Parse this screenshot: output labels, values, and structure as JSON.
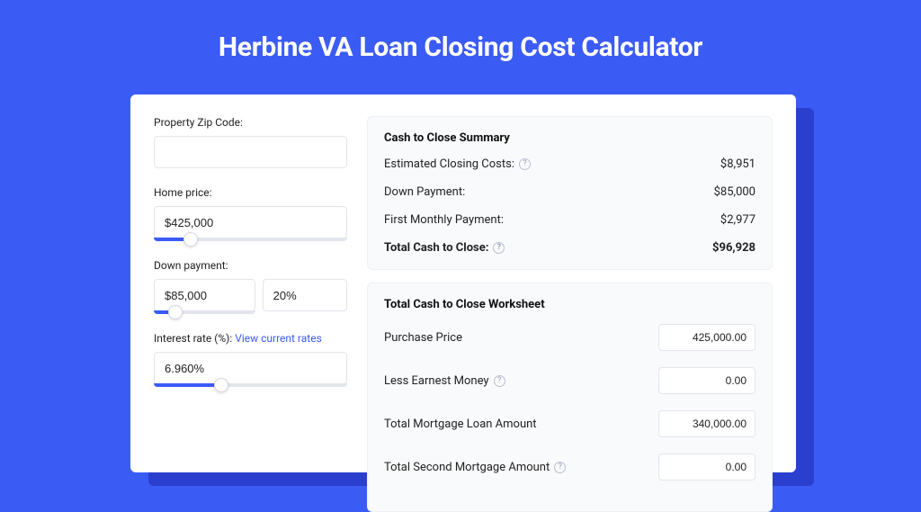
{
  "colors": {
    "page_bg": "#3b5bf5",
    "card_bg": "#ffffff",
    "shadow_bg": "#2b3fcf",
    "panel_bg": "#f9fafc",
    "border": "#e3e5ec",
    "text": "#222222",
    "link": "#3b5bf5",
    "slider_fill": "#3b5bf5",
    "slider_track": "#e3e5ec"
  },
  "page_title": "Herbine VA Loan Closing Cost Calculator",
  "form": {
    "zip": {
      "label": "Property Zip Code:",
      "value": ""
    },
    "home_price": {
      "label": "Home price:",
      "value": "$425,000",
      "slider_pct": 19
    },
    "down_payment": {
      "label": "Down payment:",
      "value": "$85,000",
      "pct": "20%",
      "slider_pct": 21
    },
    "interest_rate": {
      "label": "Interest rate (%): ",
      "link_text": "View current rates",
      "value": "6.960%",
      "slider_pct": 35
    }
  },
  "summary": {
    "title": "Cash to Close Summary",
    "rows": [
      {
        "label": "Estimated Closing Costs:",
        "help": true,
        "value": "$8,951",
        "bold": false
      },
      {
        "label": "Down Payment:",
        "help": false,
        "value": "$85,000",
        "bold": false
      },
      {
        "label": "First Monthly Payment:",
        "help": false,
        "value": "$2,977",
        "bold": false
      },
      {
        "label": "Total Cash to Close:",
        "help": true,
        "value": "$96,928",
        "bold": true
      }
    ]
  },
  "worksheet": {
    "title": "Total Cash to Close Worksheet",
    "rows": [
      {
        "label": "Purchase Price",
        "help": false,
        "value": "425,000.00"
      },
      {
        "label": "Less Earnest Money",
        "help": true,
        "value": "0.00"
      },
      {
        "label": "Total Mortgage Loan Amount",
        "help": false,
        "value": "340,000.00"
      },
      {
        "label": "Total Second Mortgage Amount",
        "help": true,
        "value": "0.00"
      }
    ]
  }
}
